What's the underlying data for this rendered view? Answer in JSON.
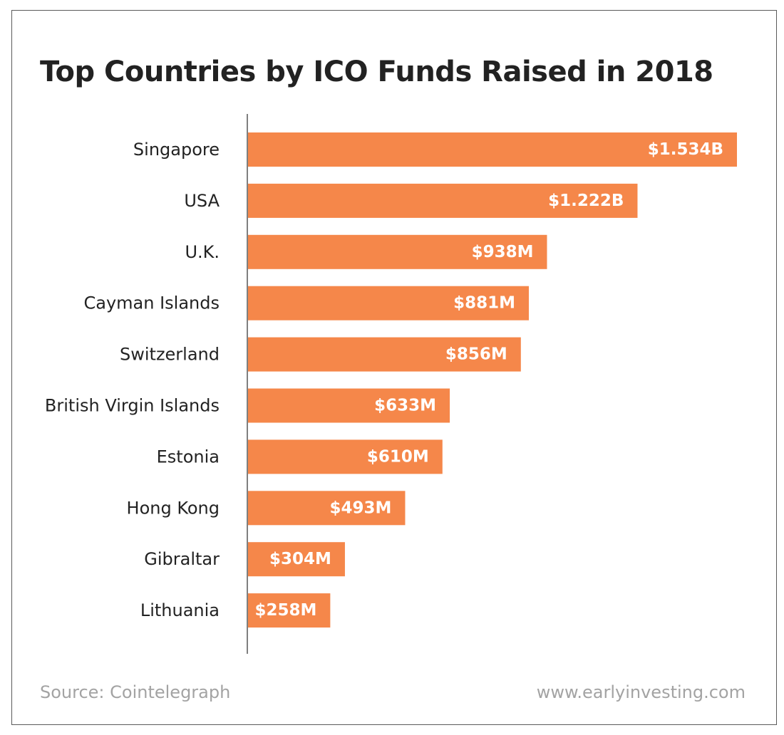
{
  "chart_data": {
    "type": "bar",
    "orientation": "horizontal",
    "title": "Top Countries by ICO Funds Raised in 2018",
    "categories": [
      "Singapore",
      "USA",
      "U.K.",
      "Cayman Islands",
      "Switzerland",
      "British Virgin Islands",
      "Estonia",
      "Hong Kong",
      "Gibraltar",
      "Lithuania"
    ],
    "values": [
      1534,
      1222,
      938,
      881,
      856,
      633,
      610,
      493,
      304,
      258
    ],
    "value_unit": "$M",
    "data_labels": [
      "$1.534B",
      "$1.222B",
      "$938M",
      "$881M",
      "$856M",
      "$633M",
      "$610M",
      "$493M",
      "$304M",
      "$258M"
    ],
    "bar_color": "#f5874a",
    "xlabel": "",
    "ylabel": "",
    "xlim": [
      0,
      1534
    ],
    "grid": false,
    "legend": "none"
  },
  "footer": {
    "source": "Source: Cointelegraph",
    "website": "www.earlyinvesting.com"
  }
}
